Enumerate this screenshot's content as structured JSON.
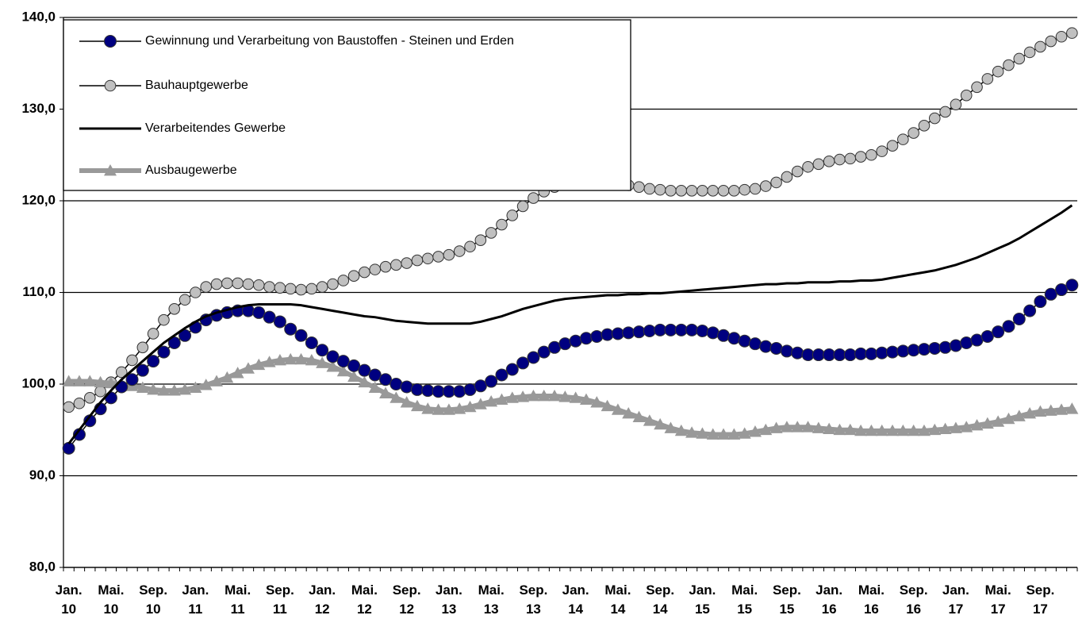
{
  "chart_data": {
    "type": "line",
    "categories": [
      "Jan. 10",
      null,
      null,
      null,
      "Mai. 10",
      null,
      null,
      null,
      "Sep. 10",
      null,
      null,
      null,
      "Jan. 11",
      null,
      null,
      null,
      "Mai. 11",
      null,
      null,
      null,
      "Sep. 11",
      null,
      null,
      null,
      "Jan. 12",
      null,
      null,
      null,
      "Mai. 12",
      null,
      null,
      null,
      "Sep. 12",
      null,
      null,
      null,
      "Jan. 13",
      null,
      null,
      null,
      "Mai. 13",
      null,
      null,
      null,
      "Sep. 13",
      null,
      null,
      null,
      "Jan. 14",
      null,
      null,
      null,
      "Mai. 14",
      null,
      null,
      null,
      "Sep. 14",
      null,
      null,
      null,
      "Jan. 15",
      null,
      null,
      null,
      "Mai. 15",
      null,
      null,
      null,
      "Sep. 15",
      null,
      null,
      null,
      "Jan. 16",
      null,
      null,
      null,
      "Mai. 16",
      null,
      null,
      null,
      "Sep. 16",
      null,
      null,
      null,
      "Jan. 17",
      null,
      null,
      null,
      "Mai. 17",
      null,
      null,
      null,
      "Sep. 17",
      null,
      null,
      null
    ],
    "series": [
      {
        "name": "Gewinnung und Verarbeitung von Baustoffen - Steinen und Erden",
        "color": "#000080",
        "marker": "circle",
        "values": [
          93.0,
          94.5,
          96.0,
          97.3,
          98.5,
          99.7,
          100.5,
          101.5,
          102.5,
          103.5,
          104.5,
          105.3,
          106.2,
          107.0,
          107.5,
          107.8,
          108.0,
          108.0,
          107.8,
          107.3,
          106.8,
          106.0,
          105.3,
          104.5,
          103.7,
          103.0,
          102.5,
          102.0,
          101.5,
          101.0,
          100.5,
          100.0,
          99.7,
          99.4,
          99.3,
          99.2,
          99.2,
          99.2,
          99.4,
          99.8,
          100.3,
          101.0,
          101.6,
          102.3,
          102.9,
          103.5,
          104.0,
          104.4,
          104.7,
          105.0,
          105.2,
          105.4,
          105.5,
          105.6,
          105.7,
          105.8,
          105.9,
          105.9,
          105.9,
          105.9,
          105.8,
          105.6,
          105.3,
          105.0,
          104.7,
          104.4,
          104.1,
          103.9,
          103.6,
          103.4,
          103.2,
          103.2,
          103.2,
          103.2,
          103.2,
          103.3,
          103.3,
          103.4,
          103.5,
          103.6,
          103.7,
          103.8,
          103.9,
          104.0,
          104.2,
          104.5,
          104.8,
          105.2,
          105.7,
          106.3,
          107.1,
          108.0,
          109.0,
          109.8,
          110.3,
          110.8
        ]
      },
      {
        "name": "Bauhauptgewerbe",
        "color": "#c0c0c0",
        "marker": "circle",
        "values": [
          97.5,
          97.9,
          98.5,
          99.2,
          100.2,
          101.3,
          102.6,
          104.0,
          105.5,
          107.0,
          108.2,
          109.2,
          110.0,
          110.6,
          110.9,
          111.0,
          111.0,
          110.9,
          110.8,
          110.6,
          110.5,
          110.4,
          110.3,
          110.4,
          110.6,
          110.9,
          111.3,
          111.8,
          112.2,
          112.5,
          112.8,
          113.0,
          113.2,
          113.5,
          113.7,
          113.9,
          114.1,
          114.5,
          115.0,
          115.7,
          116.5,
          117.4,
          118.4,
          119.4,
          120.3,
          121.0,
          121.5,
          121.8,
          122.0,
          122.1,
          122.1,
          122.0,
          121.9,
          121.7,
          121.5,
          121.3,
          121.2,
          121.1,
          121.1,
          121.1,
          121.1,
          121.1,
          121.1,
          121.1,
          121.2,
          121.3,
          121.6,
          122.0,
          122.6,
          123.2,
          123.7,
          124.0,
          124.3,
          124.5,
          124.6,
          124.8,
          125.0,
          125.4,
          126.0,
          126.7,
          127.4,
          128.2,
          129.0,
          129.7,
          130.5,
          131.5,
          132.4,
          133.3,
          134.1,
          134.8,
          135.5,
          136.2,
          136.8,
          137.4,
          137.9,
          138.3
        ]
      },
      {
        "name": "Verarbeitendes Gewerbe",
        "color": "#000000",
        "marker": null,
        "values": [
          93.5,
          95.0,
          96.5,
          98.0,
          99.3,
          100.5,
          101.5,
          102.5,
          103.5,
          104.5,
          105.3,
          106.1,
          106.8,
          107.4,
          107.8,
          108.1,
          108.4,
          108.6,
          108.7,
          108.7,
          108.7,
          108.7,
          108.6,
          108.4,
          108.2,
          108.0,
          107.8,
          107.6,
          107.4,
          107.3,
          107.1,
          106.9,
          106.8,
          106.7,
          106.6,
          106.6,
          106.6,
          106.6,
          106.6,
          106.8,
          107.1,
          107.4,
          107.8,
          108.2,
          108.5,
          108.8,
          109.1,
          109.3,
          109.4,
          109.5,
          109.6,
          109.7,
          109.7,
          109.8,
          109.8,
          109.9,
          109.9,
          110.0,
          110.1,
          110.2,
          110.3,
          110.4,
          110.5,
          110.6,
          110.7,
          110.8,
          110.9,
          110.9,
          111.0,
          111.0,
          111.1,
          111.1,
          111.1,
          111.2,
          111.2,
          111.3,
          111.3,
          111.4,
          111.6,
          111.8,
          112.0,
          112.2,
          112.4,
          112.7,
          113.0,
          113.4,
          113.8,
          114.3,
          114.8,
          115.3,
          115.9,
          116.6,
          117.3,
          118.0,
          118.7,
          119.5
        ]
      },
      {
        "name": "Ausbaugewerbe",
        "color": "#999999",
        "marker": "triangle",
        "values": [
          100.3,
          100.3,
          100.3,
          100.2,
          100.1,
          100.0,
          99.8,
          99.6,
          99.4,
          99.3,
          99.3,
          99.4,
          99.6,
          99.9,
          100.3,
          100.7,
          101.2,
          101.7,
          102.1,
          102.4,
          102.6,
          102.7,
          102.7,
          102.6,
          102.3,
          101.9,
          101.4,
          100.8,
          100.2,
          99.6,
          99.0,
          98.5,
          98.0,
          97.6,
          97.3,
          97.2,
          97.2,
          97.3,
          97.5,
          97.8,
          98.1,
          98.3,
          98.5,
          98.6,
          98.7,
          98.7,
          98.7,
          98.6,
          98.5,
          98.3,
          98.0,
          97.6,
          97.2,
          96.8,
          96.4,
          96.0,
          95.6,
          95.2,
          94.9,
          94.7,
          94.6,
          94.5,
          94.5,
          94.5,
          94.6,
          94.8,
          95.0,
          95.2,
          95.3,
          95.3,
          95.3,
          95.2,
          95.1,
          95.0,
          95.0,
          94.9,
          94.9,
          94.9,
          94.9,
          94.9,
          94.9,
          94.9,
          95.0,
          95.1,
          95.2,
          95.3,
          95.5,
          95.7,
          95.9,
          96.2,
          96.5,
          96.8,
          97.0,
          97.1,
          97.2,
          97.3
        ]
      }
    ],
    "ylim": [
      80,
      140
    ],
    "yticks": [
      {
        "value": 80,
        "label": "80,0"
      },
      {
        "value": 90,
        "label": "90,0"
      },
      {
        "value": 100,
        "label": "100,0"
      },
      {
        "value": 110,
        "label": "110,0"
      },
      {
        "value": 120,
        "label": "120,0"
      },
      {
        "value": 130,
        "label": "130,0"
      },
      {
        "value": 140,
        "label": "140,0"
      }
    ],
    "grid": true,
    "legend": "upper left"
  }
}
